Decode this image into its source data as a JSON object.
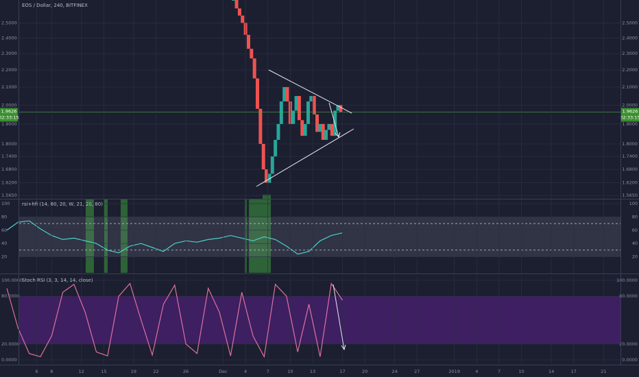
{
  "chart_data": [
    {
      "type": "candle",
      "title": "EOS / Dollar, 240, BITFINEX",
      "log_scale": true,
      "x": [
        32.4,
        32.8,
        33.2,
        33.6,
        34.0,
        34.4,
        34.8,
        35.2,
        35.6,
        36.0,
        36.4,
        36.8,
        37.2,
        37.6,
        38.0,
        38.4,
        38.8,
        39.2,
        39.6,
        40.0,
        40.4,
        40.8,
        41.2,
        41.6,
        42.0,
        42.4,
        42.8,
        43.2,
        43.6,
        44.0,
        44.4,
        44.8,
        45.2,
        45.6,
        46.0,
        46.4,
        46.8
      ],
      "values": [
        2.66,
        2.6,
        2.55,
        2.5,
        2.42,
        2.33,
        2.27,
        2.15,
        1.98,
        1.8,
        1.68,
        1.62,
        1.66,
        1.74,
        1.82,
        1.9,
        2.02,
        2.1,
        2.02,
        1.9,
        1.97,
        2.05,
        1.92,
        1.84,
        1.9,
        2.02,
        2.05,
        1.95,
        1.86,
        1.9,
        1.82,
        1.87,
        1.9,
        1.84,
        1.97,
        2.0,
        1.9626
      ],
      "up_color": "#26a69a",
      "down_color": "#ef5350",
      "xlim": [
        2,
        84
      ],
      "ylim": [
        1.551,
        2.66
      ],
      "yticks": [
        {
          "value": 2.5,
          "label": "2.5000"
        },
        {
          "value": 2.4,
          "label": "2.4000"
        },
        {
          "value": 2.3,
          "label": "2.3000"
        },
        {
          "value": 2.2,
          "label": "2.2000"
        },
        {
          "value": 2.1,
          "label": "2.1000"
        },
        {
          "value": 2.0,
          "label": "2.0000"
        },
        {
          "value": 1.9,
          "label": "1.9000"
        },
        {
          "value": 1.8,
          "label": "1.8000"
        },
        {
          "value": 1.74,
          "label": "1.7400"
        },
        {
          "value": 1.68,
          "label": "1.6800"
        },
        {
          "value": 1.62,
          "label": "1.6200"
        },
        {
          "value": 1.565,
          "label": "1.5650"
        }
      ],
      "last_price": 1.9626,
      "countdown": "02:33:15",
      "grid": true
    },
    {
      "type": "line",
      "title": "rsi+hfi (14, 80, 20, W, 21, 20, 80)",
      "color": "#4dd0c8",
      "x": [
        2,
        3.5,
        5,
        6.5,
        8,
        9.5,
        11,
        12.5,
        14,
        15.5,
        17,
        18.5,
        20,
        21.5,
        23,
        24.5,
        26,
        27.5,
        29,
        30.5,
        32,
        33.5,
        35,
        36.5,
        38,
        39.5,
        41,
        42.5,
        44,
        45.5,
        47
      ],
      "values": [
        60,
        72,
        74,
        62,
        52,
        46,
        48,
        44,
        40,
        30,
        26,
        36,
        40,
        34,
        28,
        40,
        44,
        42,
        46,
        48,
        52,
        48,
        44,
        50,
        46,
        36,
        24,
        28,
        44,
        52,
        56
      ],
      "xlim": [
        2,
        84
      ],
      "ylim": [
        0,
        100
      ],
      "yticks": [
        20,
        40,
        60,
        80,
        100
      ],
      "bands": [
        20,
        80
      ],
      "levels": [
        30,
        70
      ],
      "grid": true
    },
    {
      "type": "line",
      "title": "Stoch RSI (3, 3, 14, 14, close)",
      "color": "#e0719f",
      "x": [
        2,
        3.5,
        5,
        6.5,
        8,
        9.5,
        11,
        12.5,
        14,
        15.5,
        17,
        18.5,
        20,
        21.5,
        23,
        24.5,
        26,
        27.5,
        29,
        30.5,
        32,
        33.5,
        35,
        36.5,
        38,
        39.5,
        41,
        42.5,
        44,
        45.5,
        47
      ],
      "values": [
        90,
        40,
        8,
        4,
        30,
        85,
        95,
        60,
        10,
        5,
        80,
        96,
        50,
        6,
        70,
        94,
        20,
        8,
        90,
        60,
        5,
        85,
        30,
        4,
        95,
        80,
        10,
        70,
        4,
        96,
        75
      ],
      "xlim": [
        2,
        84
      ],
      "ylim": [
        0,
        100
      ],
      "yticks": [
        {
          "value": 0,
          "label": "0.0000"
        },
        {
          "value": 20,
          "label": "20.0000"
        },
        {
          "value": 80,
          "label": "80.0000"
        },
        {
          "value": 100,
          "label": "100.0000"
        }
      ],
      "bands": [
        20,
        80
      ],
      "band_color": "#5b1f8c",
      "grid": true,
      "xticks": [
        {
          "value": 6,
          "label": "6"
        },
        {
          "value": 8,
          "label": "8"
        },
        {
          "value": 12,
          "label": "12"
        },
        {
          "value": 15,
          "label": "15"
        },
        {
          "value": 19,
          "label": "19"
        },
        {
          "value": 22,
          "label": "22"
        },
        {
          "value": 26,
          "label": "26"
        },
        {
          "value": 31,
          "label": "Dec"
        },
        {
          "value": 34,
          "label": "4"
        },
        {
          "value": 37,
          "label": "7"
        },
        {
          "value": 40,
          "label": "10"
        },
        {
          "value": 43,
          "label": "13"
        },
        {
          "value": 47,
          "label": "17"
        },
        {
          "value": 50,
          "label": "20"
        },
        {
          "value": 54,
          "label": "24"
        },
        {
          "value": 57,
          "label": "27"
        },
        {
          "value": 62,
          "label": "2019"
        },
        {
          "value": 65,
          "label": "4"
        },
        {
          "value": 68,
          "label": "7"
        },
        {
          "value": 71,
          "label": "10"
        },
        {
          "value": 75,
          "label": "14"
        },
        {
          "value": 78,
          "label": "17"
        },
        {
          "value": 82,
          "label": "21"
        }
      ]
    }
  ]
}
